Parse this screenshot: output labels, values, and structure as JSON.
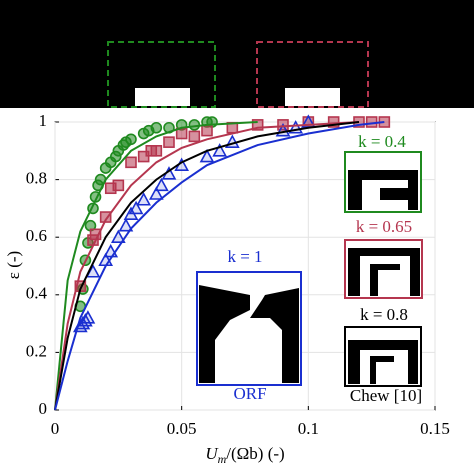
{
  "chart_data": {
    "type": "scatter",
    "x_label": {
      "main": "U",
      "sub": "m",
      "rest": "/(Ωb) (-)"
    },
    "y_label": "ε (-)",
    "xlim": [
      0,
      0.15
    ],
    "ylim": [
      0,
      1
    ],
    "xticks": [
      0,
      0.05,
      0.1,
      0.15
    ],
    "yticks": [
      0,
      0.2,
      0.4,
      0.6,
      0.8,
      1
    ],
    "grid": true,
    "series": [
      {
        "mode": "markers",
        "marker": "circle",
        "color": "#1f8a1f",
        "x": [
          0.01,
          0.011,
          0.012,
          0.013,
          0.014,
          0.015,
          0.016,
          0.017,
          0.018,
          0.02,
          0.022,
          0.024,
          0.025,
          0.027,
          0.028,
          0.03,
          0.035,
          0.037,
          0.04,
          0.045,
          0.05,
          0.055,
          0.06,
          0.062
        ],
        "values": [
          0.36,
          0.42,
          0.52,
          0.58,
          0.64,
          0.7,
          0.74,
          0.78,
          0.8,
          0.84,
          0.86,
          0.88,
          0.9,
          0.92,
          0.93,
          0.94,
          0.96,
          0.97,
          0.98,
          0.98,
          0.99,
          0.99,
          1,
          1
        ]
      },
      {
        "mode": "markers",
        "marker": "square",
        "color": "#b5364f",
        "x": [
          0.01,
          0.015,
          0.016,
          0.02,
          0.022,
          0.025,
          0.03,
          0.035,
          0.038,
          0.04,
          0.045,
          0.05,
          0.055,
          0.06,
          0.07,
          0.08,
          0.09,
          0.1,
          0.11,
          0.12,
          0.125,
          0.13
        ],
        "values": [
          0.43,
          0.59,
          0.61,
          0.67,
          0.77,
          0.78,
          0.86,
          0.88,
          0.9,
          0.9,
          0.93,
          0.96,
          0.95,
          0.97,
          0.98,
          0.99,
          0.99,
          1,
          1,
          1,
          1,
          1
        ]
      },
      {
        "mode": "markers",
        "marker": "triangle",
        "color": "#1a2fd0",
        "x": [
          0.01,
          0.011,
          0.012,
          0.013,
          0.015,
          0.02,
          0.022,
          0.025,
          0.028,
          0.03,
          0.032,
          0.035,
          0.04,
          0.042,
          0.045,
          0.05,
          0.06,
          0.065,
          0.07,
          0.09,
          0.095,
          0.1
        ],
        "values": [
          0.29,
          0.3,
          0.31,
          0.32,
          0.48,
          0.52,
          0.55,
          0.6,
          0.64,
          0.68,
          0.7,
          0.73,
          0.75,
          0.78,
          0.82,
          0.85,
          0.88,
          0.9,
          0.93,
          0.97,
          0.98,
          1
        ]
      },
      {
        "mode": "line",
        "color": "#1f8a1f",
        "x": [
          0,
          0.005,
          0.01,
          0.02,
          0.03,
          0.04,
          0.05,
          0.06,
          0.08,
          0.1,
          0.12,
          0.13
        ],
        "values": [
          0,
          0.45,
          0.62,
          0.8,
          0.9,
          0.95,
          0.98,
          0.99,
          1,
          null,
          null,
          null
        ]
      },
      {
        "mode": "line",
        "color": "#b5364f",
        "x": [
          0,
          0.005,
          0.01,
          0.02,
          0.03,
          0.04,
          0.05,
          0.06,
          0.08,
          0.1,
          0.12,
          0.13
        ],
        "values": [
          0,
          0.3,
          0.48,
          0.66,
          0.78,
          0.86,
          0.91,
          0.94,
          0.98,
          0.99,
          1,
          null
        ]
      },
      {
        "mode": "line",
        "color": "#000000",
        "x": [
          0,
          0.005,
          0.01,
          0.02,
          0.03,
          0.04,
          0.05,
          0.06,
          0.08,
          0.1,
          0.12,
          0.13
        ],
        "values": [
          0,
          0.25,
          0.42,
          0.6,
          0.72,
          0.8,
          0.86,
          0.9,
          0.95,
          0.98,
          1,
          null
        ]
      },
      {
        "mode": "line",
        "color": "#1a2fd0",
        "x": [
          0,
          0.005,
          0.01,
          0.02,
          0.03,
          0.04,
          0.05,
          0.06,
          0.08,
          0.1,
          0.12,
          0.13
        ],
        "values": [
          0,
          0.17,
          0.32,
          0.5,
          0.63,
          0.72,
          0.79,
          0.85,
          0.92,
          0.96,
          0.99,
          1
        ]
      }
    ],
    "annotations": [
      {
        "text": "k = 0.4",
        "color": "#1f8a1f"
      },
      {
        "text": "k = 0.65",
        "color": "#b5364f"
      },
      {
        "text": "k = 0.8",
        "color": "#000000"
      },
      {
        "text": "Chew [10]",
        "color": "#000000"
      },
      {
        "text": "k = 1",
        "color": "#1a2fd0"
      },
      {
        "text": "ORF",
        "color": "#1a2fd0"
      }
    ]
  }
}
